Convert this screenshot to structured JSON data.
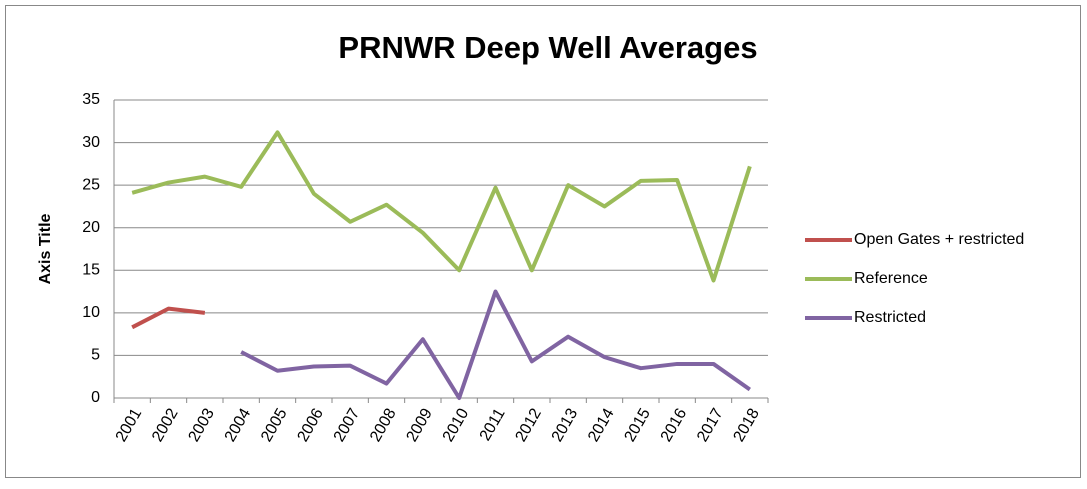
{
  "chart_data": {
    "type": "line",
    "title": "PRNWR Deep Well Averages",
    "y_label": "Axis Title",
    "categories": [
      "2001",
      "2002",
      "2003",
      "2004",
      "2005",
      "2006",
      "2007",
      "2008",
      "2009",
      "2010",
      "2011",
      "2012",
      "2013",
      "2014",
      "2015",
      "2016",
      "2017",
      "2018"
    ],
    "series": [
      {
        "name": "Open Gates + restricted",
        "color": "#c0504d",
        "values": [
          8.3,
          10.5,
          10.0,
          null,
          null,
          null,
          null,
          null,
          null,
          null,
          null,
          null,
          null,
          null,
          null,
          null,
          null,
          null
        ]
      },
      {
        "name": "Reference",
        "color": "#9bbb59",
        "values": [
          24.1,
          25.3,
          26.0,
          24.8,
          31.2,
          24.0,
          20.7,
          22.7,
          19.4,
          15.0,
          24.7,
          15.0,
          25.0,
          22.5,
          25.5,
          25.6,
          13.8,
          27.2
        ]
      },
      {
        "name": "Restricted",
        "color": "#8064a2",
        "values": [
          null,
          null,
          null,
          5.4,
          3.2,
          3.7,
          3.8,
          1.7,
          6.9,
          0,
          12.5,
          4.3,
          7.2,
          4.8,
          3.5,
          4.0,
          4.0,
          1.0
        ]
      }
    ],
    "ylim": [
      0,
      35
    ],
    "yticks": [
      0,
      5,
      10,
      15,
      20,
      25,
      30,
      35
    ],
    "grid": true,
    "legend": "right"
  }
}
